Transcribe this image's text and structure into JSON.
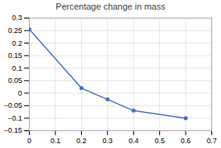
{
  "chart_data": {
    "type": "line",
    "title": "Percentage change in mass",
    "x": [
      0,
      0.2,
      0.3,
      0.4,
      0.6
    ],
    "values": [
      0.255,
      0.02,
      -0.025,
      -0.07,
      -0.1
    ],
    "color": "#4472C4",
    "marker": "circle",
    "xlim": [
      0,
      0.7
    ],
    "ylim": [
      -0.15,
      0.3
    ],
    "xticks": [
      0,
      0.1,
      0.2,
      0.3,
      0.4,
      0.5,
      0.6,
      0.7
    ],
    "yticks": [
      -0.15,
      -0.1,
      -0.05,
      0,
      0.05,
      0.1,
      0.15,
      0.2,
      0.25,
      0.3
    ],
    "grid": true
  }
}
